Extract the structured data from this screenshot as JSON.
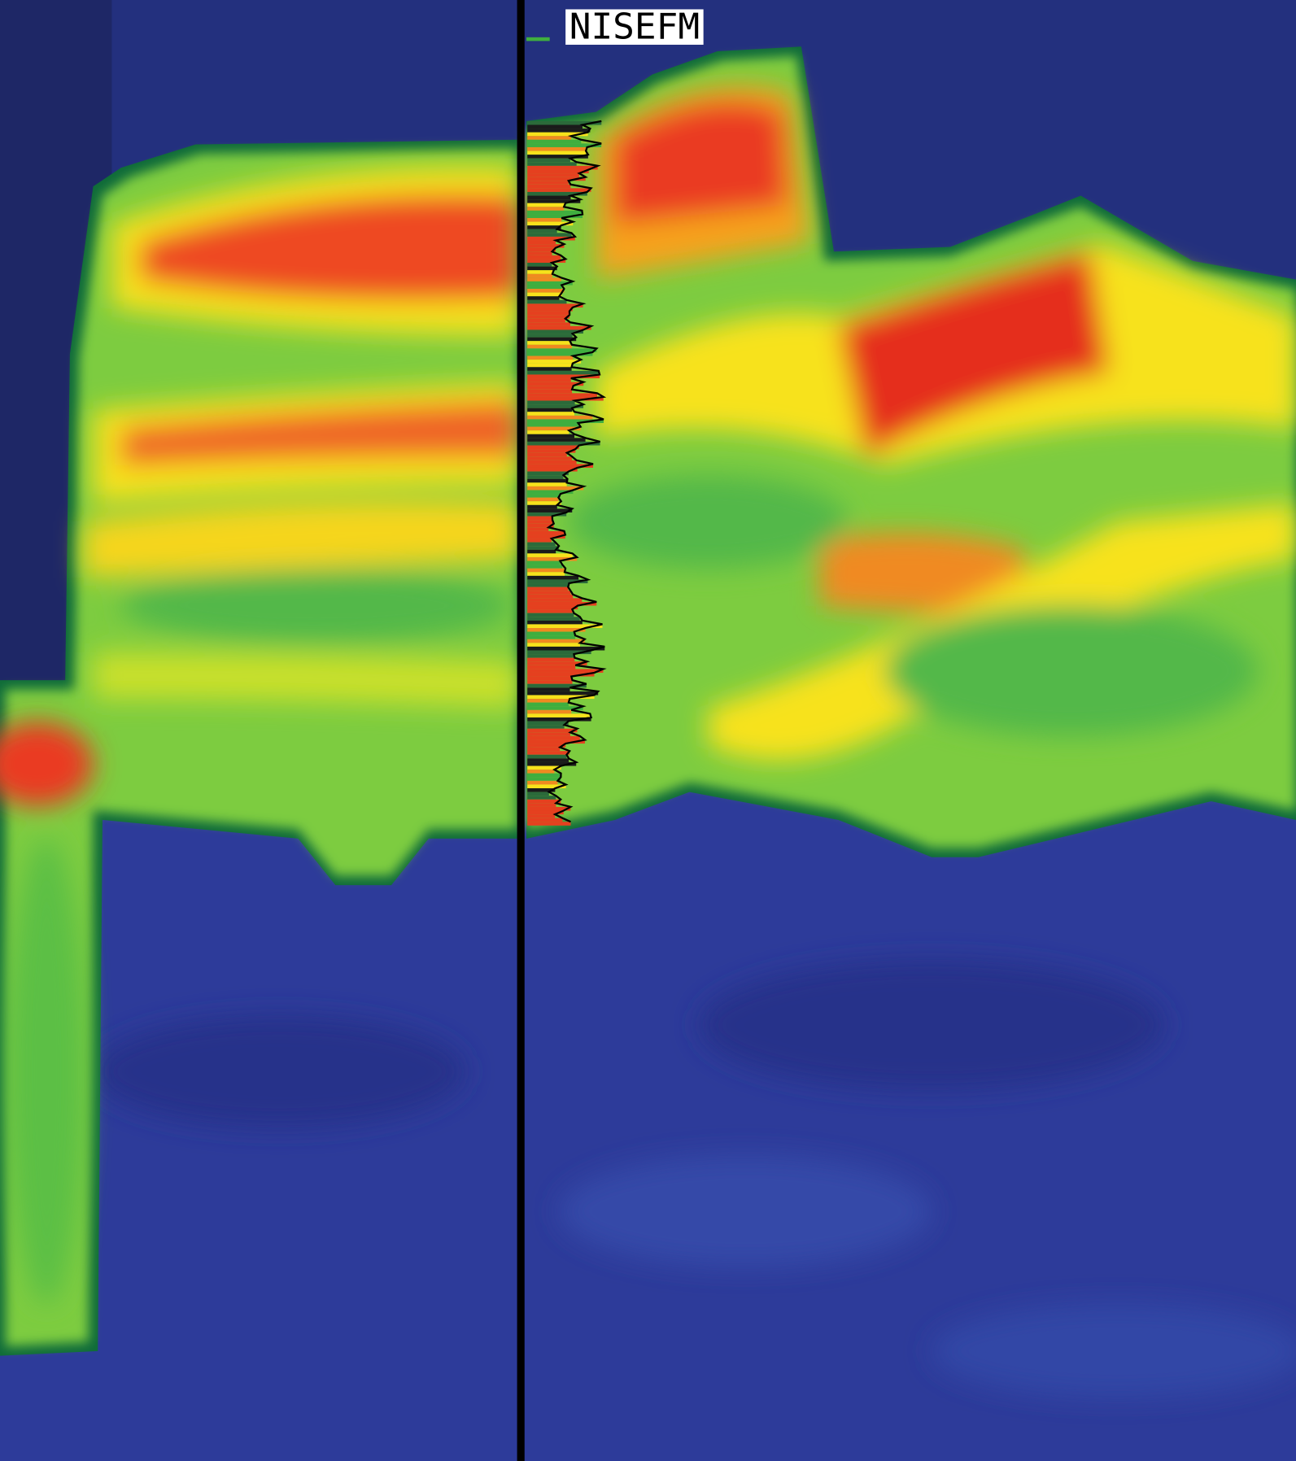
{
  "label": "NISEFM"
}
